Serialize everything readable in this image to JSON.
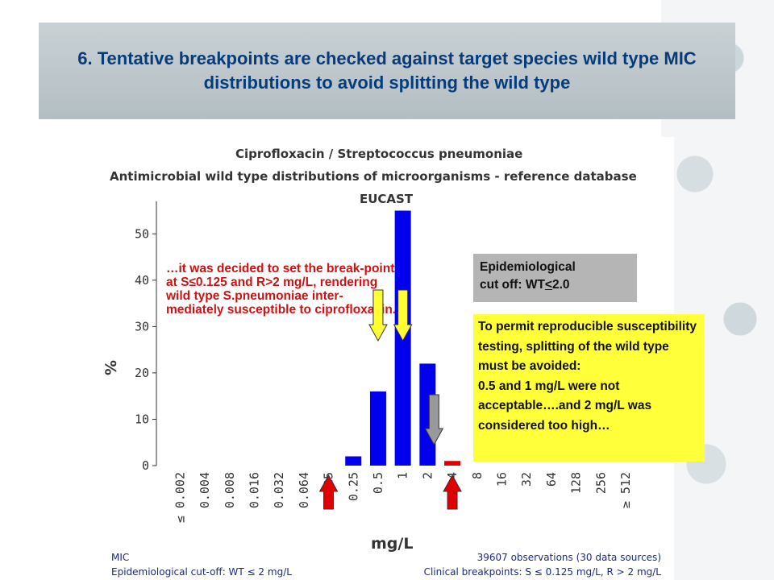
{
  "slide": {
    "title": "6. Tentative breakpoints are checked against target species wild type MIC distributions to avoid splitting the wild type"
  },
  "chart_data": {
    "type": "bar",
    "title": "Ciprofloxacin / Streptococcus pneumoniae",
    "subtitle": "Antimicrobial wild type distributions of microorganisms - reference database",
    "header": "EUCAST",
    "categories": [
      "≤ 0.002",
      "0.004",
      "0.008",
      "0.016",
      "0.032",
      "0.064",
      "0.125",
      "0.25",
      "0.5",
      "1",
      "2",
      "4",
      "8",
      "16",
      "32",
      "64",
      "128",
      "256",
      "≥ 512"
    ],
    "values": [
      0,
      0,
      0,
      0,
      0,
      0,
      0,
      2,
      16,
      55,
      22,
      1,
      0,
      0,
      0,
      0,
      0,
      0,
      0
    ],
    "bar_colors": [
      "#0000ee",
      "#0000ee",
      "#0000ee",
      "#0000ee",
      "#0000ee",
      "#0000ee",
      "#0000ee",
      "#0000ee",
      "#0000ee",
      "#0000ee",
      "#0000ee",
      "#e00000",
      "#0000ee",
      "#0000ee",
      "#0000ee",
      "#0000ee",
      "#0000ee",
      "#0000ee",
      "#0000ee"
    ],
    "xlabel": "mg/L",
    "ylabel": "%",
    "yticks": [
      0,
      10,
      20,
      30,
      40,
      50
    ],
    "ylim": [
      0,
      57
    ],
    "grid": false,
    "footer": {
      "left_1": "MIC",
      "left_2": "Epidemiological cut-off: WT ≤ 2 mg/L",
      "right_1": "39607 observations (30 data sources)",
      "right_2": "Clinical breakpoints: S ≤ 0.125 mg/L,  R > 2 mg/L"
    }
  },
  "annotations": {
    "red_text": "…it was decided to set the break-point at S≤0.125 and R>2 mg/L, rendering wild type S.pneumoniae inter-mediately susceptible to ciprofloxacin.",
    "gray_box_line1": "Epidemiological",
    "gray_box_line2_prefix": "cut off: WT",
    "gray_box_line2_underlined": "<",
    "gray_box_line2_suffix": "2.0",
    "yellow_box": "To permit reproducible susceptibility testing, splitting of the wild type must be avoided:\n0.5 and 1 mg/L were not acceptable….and 2 mg/L was considered too high…"
  },
  "arrows": [
    {
      "name": "yellow-arrow-0.5",
      "category": "0.5",
      "direction": "down",
      "color": "#ffff33"
    },
    {
      "name": "yellow-arrow-1",
      "category": "1",
      "direction": "down",
      "color": "#ffff33"
    },
    {
      "name": "gray-arrow-2",
      "category": "2",
      "direction": "down",
      "color": "#999999"
    },
    {
      "name": "red-arrow-0.125",
      "category": "0.125",
      "direction": "up",
      "color": "#e00000"
    },
    {
      "name": "red-arrow-4",
      "category": "4",
      "direction": "up",
      "color": "#e00000"
    }
  ]
}
